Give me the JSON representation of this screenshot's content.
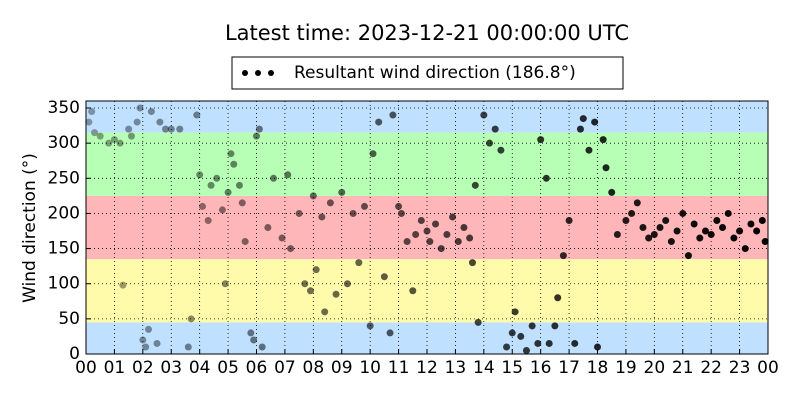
{
  "chart_data": {
    "type": "scatter",
    "title": "Latest time: 2023-12-21 00:00:00 UTC",
    "ylabel": "Wind direction (°)",
    "xlim": [
      0,
      24
    ],
    "xticks": [
      {
        "value": 0,
        "label": "00"
      },
      {
        "value": 1,
        "label": "01"
      },
      {
        "value": 2,
        "label": "02"
      },
      {
        "value": 3,
        "label": "03"
      },
      {
        "value": 4,
        "label": "04"
      },
      {
        "value": 5,
        "label": "05"
      },
      {
        "value": 6,
        "label": "06"
      },
      {
        "value": 7,
        "label": "07"
      },
      {
        "value": 8,
        "label": "08"
      },
      {
        "value": 9,
        "label": "09"
      },
      {
        "value": 10,
        "label": "10"
      },
      {
        "value": 11,
        "label": "11"
      },
      {
        "value": 12,
        "label": "12"
      },
      {
        "value": 13,
        "label": "13"
      },
      {
        "value": 14,
        "label": "14"
      },
      {
        "value": 15,
        "label": "15"
      },
      {
        "value": 16,
        "label": "16"
      },
      {
        "value": 17,
        "label": "17"
      },
      {
        "value": 18,
        "label": "18"
      },
      {
        "value": 19,
        "label": "19"
      },
      {
        "value": 20,
        "label": "20"
      },
      {
        "value": 21,
        "label": "21"
      },
      {
        "value": 22,
        "label": "22"
      },
      {
        "value": 23,
        "label": "23"
      },
      {
        "value": 24,
        "label": "00"
      }
    ],
    "ylim": [
      0,
      360
    ],
    "yticks": [
      0,
      50,
      100,
      150,
      200,
      250,
      300,
      350
    ],
    "grid": true,
    "bands": [
      {
        "from": 0,
        "to": 45,
        "color": "#bfe0ff"
      },
      {
        "from": 45,
        "to": 135,
        "color": "#fffbaa"
      },
      {
        "from": 135,
        "to": 225,
        "color": "#ffb6b9"
      },
      {
        "from": 225,
        "to": 315,
        "color": "#b6ffb4"
      },
      {
        "from": 315,
        "to": 360,
        "color": "#bfe0ff"
      }
    ],
    "fade_by_time": true,
    "series": [
      {
        "name": "Resultant wind direction (186.8°)",
        "color": "#000000",
        "x": [
          0.1,
          0.2,
          0.3,
          0.5,
          0.8,
          1.0,
          1.2,
          1.3,
          1.5,
          1.6,
          1.8,
          1.9,
          2.0,
          2.1,
          2.2,
          2.3,
          2.5,
          2.6,
          2.8,
          3.0,
          3.3,
          3.6,
          3.7,
          3.9,
          4.0,
          4.1,
          4.3,
          4.4,
          4.6,
          4.8,
          4.9,
          5.0,
          5.1,
          5.2,
          5.4,
          5.5,
          5.6,
          5.8,
          5.9,
          6.0,
          6.1,
          6.2,
          6.4,
          6.6,
          6.9,
          7.1,
          7.2,
          7.5,
          7.7,
          7.9,
          8.0,
          8.1,
          8.3,
          8.4,
          8.6,
          8.8,
          9.0,
          9.2,
          9.4,
          9.6,
          9.8,
          10.0,
          10.1,
          10.3,
          10.5,
          10.7,
          10.8,
          11.0,
          11.1,
          11.3,
          11.5,
          11.6,
          11.8,
          12.0,
          12.1,
          12.3,
          12.5,
          12.7,
          12.9,
          13.1,
          13.3,
          13.5,
          13.6,
          13.7,
          13.8,
          14.0,
          14.2,
          14.4,
          14.6,
          14.8,
          15.0,
          15.1,
          15.3,
          15.5,
          15.7,
          15.9,
          16.0,
          16.2,
          16.3,
          16.5,
          16.6,
          16.8,
          17.0,
          17.2,
          17.4,
          17.5,
          17.7,
          17.9,
          18.0,
          18.2,
          18.3,
          18.5,
          18.7,
          19.0,
          19.2,
          19.4,
          19.6,
          19.8,
          20.0,
          20.2,
          20.4,
          20.6,
          20.8,
          21.0,
          21.2,
          21.4,
          21.6,
          21.8,
          22.0,
          22.2,
          22.4,
          22.6,
          22.8,
          23.0,
          23.2,
          23.4,
          23.6,
          23.8,
          23.9
        ],
        "values": [
          330,
          345,
          315,
          310,
          300,
          305,
          300,
          98,
          320,
          310,
          330,
          350,
          20,
          10,
          35,
          345,
          15,
          330,
          320,
          320,
          320,
          10,
          50,
          340,
          255,
          210,
          190,
          240,
          250,
          205,
          100,
          230,
          285,
          270,
          240,
          215,
          160,
          30,
          20,
          310,
          320,
          10,
          180,
          250,
          165,
          255,
          150,
          200,
          100,
          90,
          225,
          120,
          195,
          60,
          215,
          85,
          230,
          100,
          200,
          130,
          210,
          40,
          285,
          330,
          110,
          30,
          340,
          210,
          200,
          160,
          90,
          170,
          190,
          175,
          160,
          185,
          150,
          170,
          195,
          160,
          180,
          165,
          130,
          240,
          45,
          340,
          300,
          320,
          290,
          10,
          30,
          60,
          25,
          5,
          40,
          15,
          305,
          250,
          15,
          40,
          80,
          140,
          190,
          15,
          320,
          335,
          290,
          330,
          10,
          305,
          265,
          230,
          170,
          190,
          200,
          215,
          180,
          165,
          170,
          180,
          190,
          160,
          175,
          200,
          140,
          185,
          165,
          175,
          170,
          190,
          180,
          200,
          165,
          175,
          150,
          185,
          175,
          190,
          160
        ]
      }
    ]
  }
}
